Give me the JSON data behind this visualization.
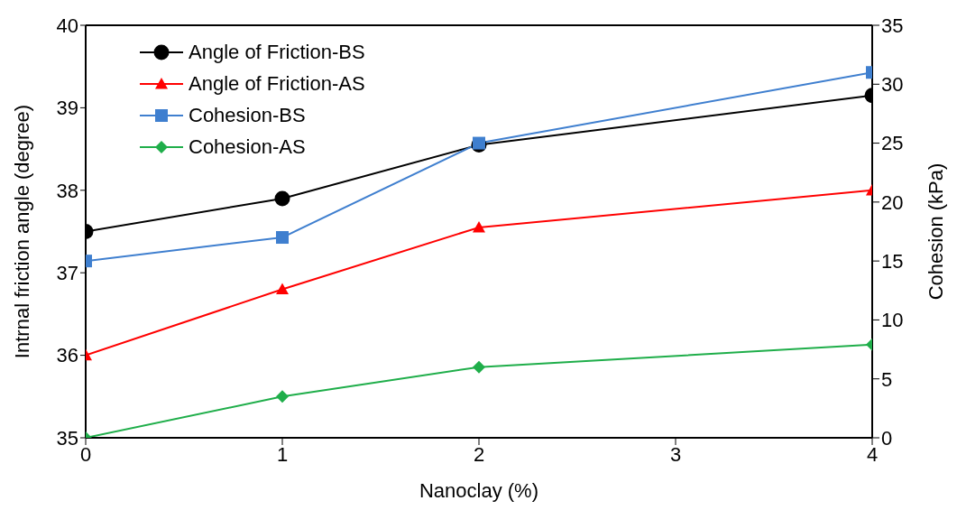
{
  "chart_data": {
    "type": "line",
    "xlabel": "Nanoclay (%)",
    "ylabel": "Intrnal friction angle (degree)",
    "y2label": "Cohesion (kPa)",
    "x": [
      0,
      1,
      2,
      4
    ],
    "series": [
      {
        "name": "Angle of Friction-BS",
        "color": "#000000",
        "marker": "circle",
        "values": [
          37.5,
          37.9,
          38.55,
          39.15
        ]
      },
      {
        "name": "Angle of Friction-AS",
        "color": "#ff0000",
        "marker": "triangle",
        "values": [
          36.0,
          36.8,
          37.55,
          38.0
        ]
      },
      {
        "name": "Cohesion-BS",
        "color": "#3f7fcf",
        "marker": "square",
        "axis": "y2",
        "values": [
          15,
          17,
          25,
          31
        ]
      },
      {
        "name": "Cohesion-AS",
        "color": "#1fae4a",
        "marker": "diamond",
        "axis": "y2",
        "values": [
          0,
          3.5,
          6,
          7.9
        ]
      }
    ],
    "xlim": [
      0,
      4
    ],
    "xticks": [
      0,
      1,
      2,
      3,
      4
    ],
    "ylim": [
      35,
      40
    ],
    "yticks": [
      35,
      36,
      37,
      38,
      39,
      40
    ],
    "y2lim": [
      0,
      35
    ],
    "y2ticks": [
      0,
      5,
      10,
      15,
      20,
      25,
      30,
      35
    ],
    "grid": false,
    "legend": "top left",
    "line_style": "solid"
  }
}
